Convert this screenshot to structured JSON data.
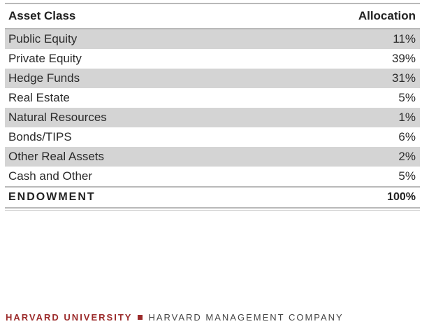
{
  "table": {
    "header": {
      "asset_class": "Asset Class",
      "allocation": "Allocation"
    },
    "rows": [
      {
        "label": "Public Equity",
        "value": "11%"
      },
      {
        "label": "Private Equity",
        "value": "39%"
      },
      {
        "label": "Hedge Funds",
        "value": "31%"
      },
      {
        "label": "Real Estate",
        "value": "5%"
      },
      {
        "label": "Natural Resources",
        "value": "1%"
      },
      {
        "label": "Bonds/TIPS",
        "value": "6%"
      },
      {
        "label": "Other Real Assets",
        "value": "2%"
      },
      {
        "label": "Cash and Other",
        "value": "5%"
      }
    ],
    "total": {
      "label": "ENDOWMENT",
      "value": "100%"
    }
  },
  "footer": {
    "university": "HARVARD UNIVERSITY",
    "company": "HARVARD MANAGEMENT COMPANY"
  },
  "colors": {
    "brand": "#9b2a2a",
    "shade": "#d4d4d4"
  }
}
